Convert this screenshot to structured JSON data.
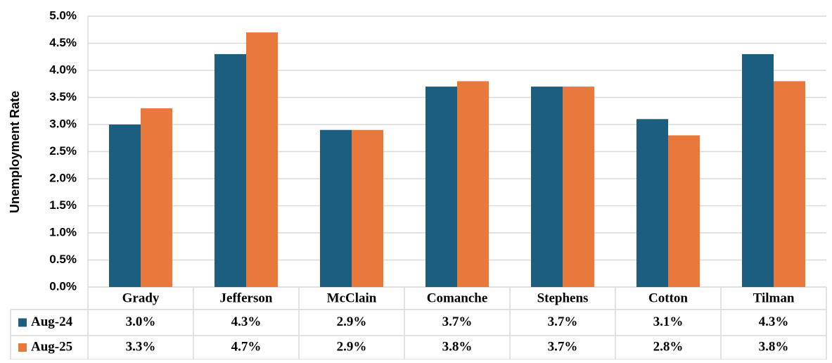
{
  "chart_data": {
    "type": "bar",
    "y_label": "Unemployment Rate",
    "categories": [
      "Grady",
      "Jefferson",
      "McClain",
      "Comanche",
      "Stephens",
      "Cotton",
      "Tilman"
    ],
    "series": [
      {
        "name": "Aug-24",
        "color": "#1b5e80",
        "values": [
          3.0,
          4.3,
          2.9,
          3.7,
          3.7,
          3.1,
          4.3
        ],
        "value_labels": [
          "3.0%",
          "4.3%",
          "2.9%",
          "3.7%",
          "3.7%",
          "3.1%",
          "4.3%"
        ]
      },
      {
        "name": "Aug-25",
        "color": "#e8793a",
        "values": [
          3.3,
          4.7,
          2.9,
          3.8,
          3.7,
          2.8,
          3.8
        ],
        "value_labels": [
          "3.3%",
          "4.7%",
          "2.9%",
          "3.8%",
          "3.7%",
          "2.8%",
          "3.8%"
        ]
      }
    ],
    "ylim": [
      0,
      5
    ],
    "yticks": [
      {
        "value": 0,
        "label": "0.0%"
      },
      {
        "value": 0.5,
        "label": "0.5%"
      },
      {
        "value": 1,
        "label": "1.0%"
      },
      {
        "value": 1.5,
        "label": "1.5%"
      },
      {
        "value": 2,
        "label": "2.0%"
      },
      {
        "value": 2.5,
        "label": "2.5%"
      },
      {
        "value": 3,
        "label": "3.0%"
      },
      {
        "value": 3.5,
        "label": "3.5%"
      },
      {
        "value": 4,
        "label": "4.0%"
      },
      {
        "value": 4.5,
        "label": "4.5%"
      },
      {
        "value": 5,
        "label": "5.0%"
      }
    ],
    "grid": true,
    "legend": "table"
  }
}
